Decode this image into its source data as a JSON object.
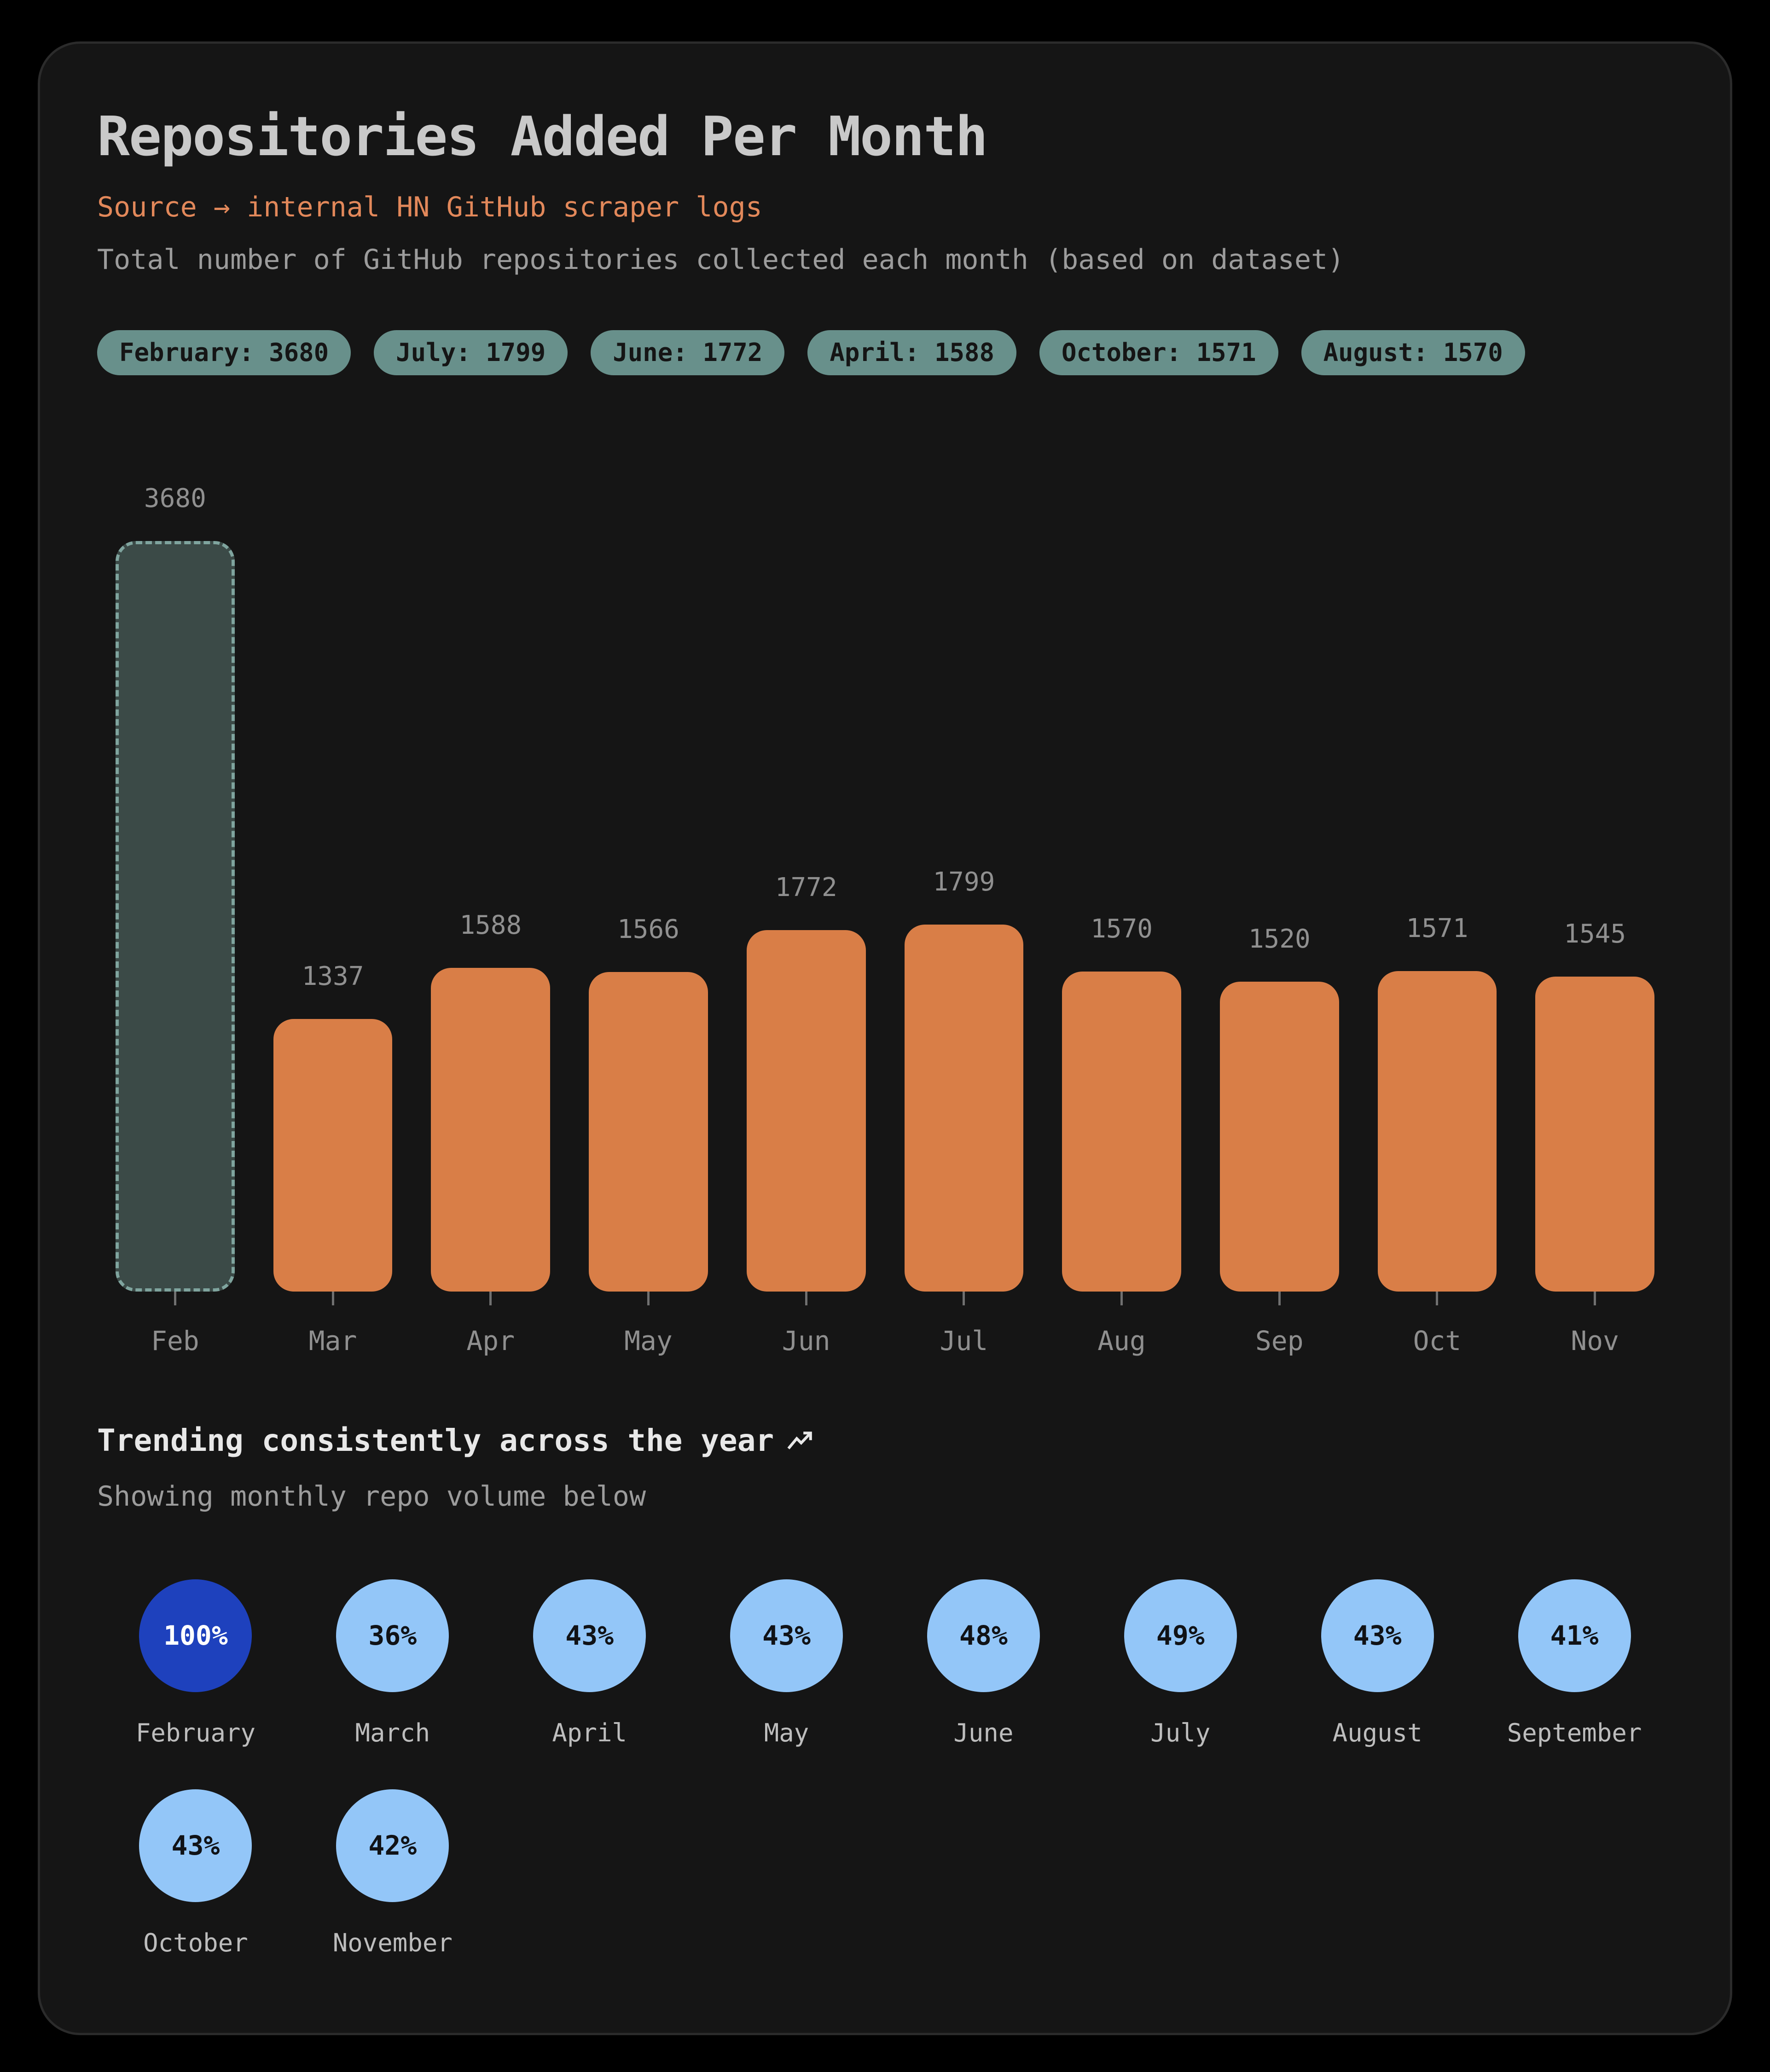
{
  "header": {
    "title": "Repositories Added Per Month",
    "source_line": "Source → internal HN GitHub scraper logs",
    "description": "Total number of GitHub repositories collected each month (based on dataset)"
  },
  "badges": [
    "February: 3680",
    "July: 1799",
    "June: 1772",
    "April: 1588",
    "October: 1571",
    "August: 1570"
  ],
  "chart_data": {
    "type": "bar",
    "title": "Repositories Added Per Month",
    "categories": [
      "Feb",
      "Mar",
      "Apr",
      "May",
      "Jun",
      "Jul",
      "Aug",
      "Sep",
      "Oct",
      "Nov"
    ],
    "values": [
      3680,
      1337,
      1588,
      1566,
      1772,
      1799,
      1570,
      1520,
      1571,
      1545
    ],
    "value_labels": [
      "3680",
      "1337",
      "1588",
      "1566",
      "1772",
      "1799",
      "1570",
      "1520",
      "1571",
      "1545"
    ],
    "highlight_index": 0,
    "highlight_category": "Feb",
    "xlabel": "",
    "ylabel": "",
    "ylim": [
      0,
      3680
    ],
    "grid": false,
    "legend_position": "none",
    "bar_color": "#d97e47",
    "highlight_fill_color": "#3b4a47",
    "highlight_border_color": "#7fa49e"
  },
  "footer_notes": {
    "trending_note": "Trending consistently across the year",
    "trending_icon": "trending-up-icon",
    "showing_note": "Showing monthly repo volume below"
  },
  "percent_circles": [
    {
      "label": "February",
      "percent": "100%",
      "active": true
    },
    {
      "label": "March",
      "percent": "36%",
      "active": false
    },
    {
      "label": "April",
      "percent": "43%",
      "active": false
    },
    {
      "label": "May",
      "percent": "43%",
      "active": false
    },
    {
      "label": "June",
      "percent": "48%",
      "active": false
    },
    {
      "label": "July",
      "percent": "49%",
      "active": false
    },
    {
      "label": "August",
      "percent": "43%",
      "active": false
    },
    {
      "label": "September",
      "percent": "41%",
      "active": false
    },
    {
      "label": "October",
      "percent": "43%",
      "active": false
    },
    {
      "label": "November",
      "percent": "42%",
      "active": false
    }
  ],
  "colors": {
    "page_background": "#000000",
    "card_background": "#151515",
    "card_border": "#2b2b2b",
    "title_text": "#c9c9c9",
    "source_text": "#e2885a",
    "description_text": "#9c9c9c",
    "badge_background": "#68908b",
    "badge_text": "#151515",
    "bar_orange": "#d97e47",
    "highlight_fill": "#3b4a47",
    "highlight_dash": "#7fa49e",
    "value_label_text": "#909090",
    "axis_label_text": "#8f8f8f",
    "trending_text": "#e8e8e8",
    "circle_light_blue": "#93c6f8",
    "circle_active_blue": "#1e41bd",
    "circle_label_text": "#bdbdbd"
  }
}
